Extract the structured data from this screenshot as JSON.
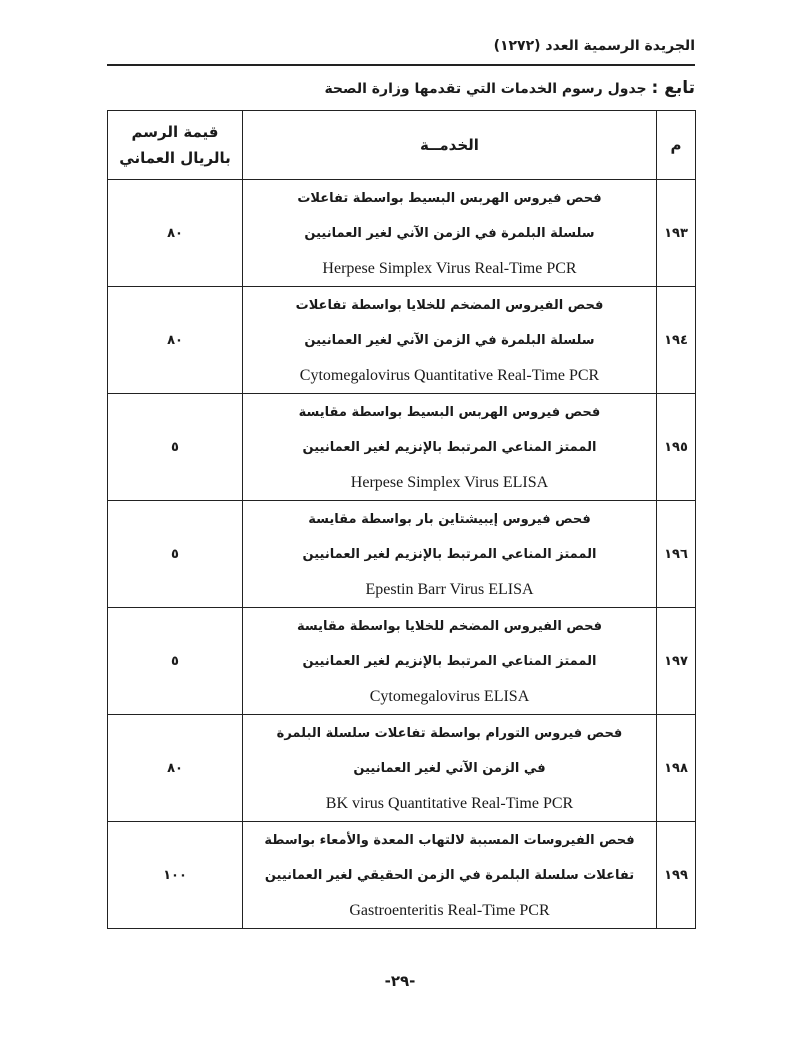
{
  "running_head": "الجريدة الرسمية العدد (١٢٧٢)",
  "title": {
    "lead": "تابع :",
    "text": "جدول رسوم الخدمات التي تقدمها وزارة الصحة"
  },
  "table": {
    "headers": {
      "num": "م",
      "service": "الخدمــة",
      "fee_line1": "قيمة الرسم",
      "fee_line2": "بالريال العماني"
    },
    "rows": [
      {
        "num": "١٩٣",
        "ar1": "فحص فيروس الهربس البسيط بواسطة تفاعلات",
        "ar2": "سلسلة البلمرة في الزمن الآني لغير العمانيين",
        "en": "Herpese Simplex Virus Real-Time PCR",
        "fee": "٨٠"
      },
      {
        "num": "١٩٤",
        "ar1": "فحص الفيروس المضخم للخلايا بواسطة تفاعلات",
        "ar2": "سلسلة البلمرة في الزمن الآني لغير العمانيين",
        "en": "Cytomegalovirus Quantitative Real-Time PCR",
        "fee": "٨٠"
      },
      {
        "num": "١٩٥",
        "ar1": "فحص فيروس الهربس البسيط بواسطة مقايسة",
        "ar2": "الممتز المناعي المرتبط بالإنزيم لغير العمانيين",
        "en": "Herpese Simplex Virus ELISA",
        "fee": "٥"
      },
      {
        "num": "١٩٦",
        "ar1": "فحص فيروس إيبيشتاين بار بواسطة مقايسة",
        "ar2": "الممتز المناعي المرتبط بالإنزيم لغير العمانيين",
        "en": "Epestin Barr Virus ELISA",
        "fee": "٥"
      },
      {
        "num": "١٩٧",
        "ar1": "فحص الفيروس المضخم للخلايا بواسطة مقايسة",
        "ar2": "الممتز المناعي المرتبط بالإنزيم لغير العمانيين",
        "en": "Cytomegalovirus ELISA",
        "fee": "٥"
      },
      {
        "num": "١٩٨",
        "ar1": "فحص فيروس التورام بواسطة تفاعلات سلسلة البلمرة",
        "ar2": "في الزمن الآني لغير العمانيين",
        "en": "BK virus Quantitative Real-Time PCR",
        "fee": "٨٠"
      },
      {
        "num": "١٩٩",
        "ar1": "فحص الفيروسات المسببة لالتهاب المعدة والأمعاء بواسطة",
        "ar2": "تفاعلات سلسلة البلمرة في الزمن الحقيقي لغير العمانيين",
        "en": "Gastroenteritis Real-Time PCR",
        "fee": "١٠٠"
      }
    ]
  },
  "page_number": "-٢٩-"
}
